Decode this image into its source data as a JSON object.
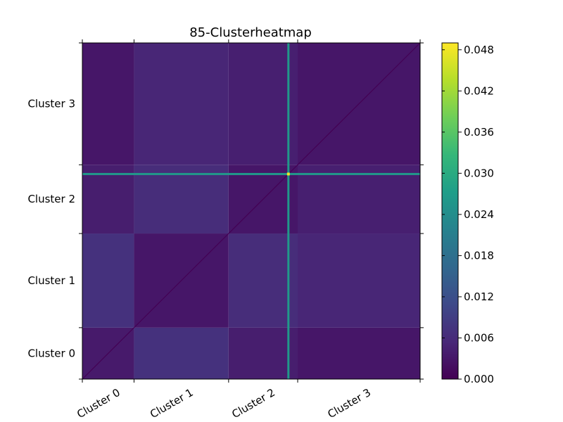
{
  "chart_data": {
    "type": "heatmap",
    "title": "85-Clusterheatmap",
    "x_tick_labels": [
      "Cluster 0",
      "Cluster 1",
      "Cluster 2",
      "Cluster 3"
    ],
    "y_tick_labels": [
      "Cluster 0",
      "Cluster 1",
      "Cluster 2",
      "Cluster 3"
    ],
    "clusters": [
      {
        "name": "Cluster 0",
        "start": 0.0,
        "end": 0.153
      },
      {
        "name": "Cluster 1",
        "start": 0.153,
        "end": 0.433
      },
      {
        "name": "Cluster 2",
        "start": 0.433,
        "end": 0.6375
      },
      {
        "name": "Cluster 3",
        "start": 0.6375,
        "end": 1.0
      }
    ],
    "block_values": [
      [
        0.0035,
        0.007,
        0.004,
        0.003
      ],
      [
        0.007,
        0.003,
        0.0062,
        0.0052
      ],
      [
        0.004,
        0.0062,
        0.003,
        0.0042
      ],
      [
        0.003,
        0.0052,
        0.0042,
        0.003
      ]
    ],
    "outlier_line_position": 0.61,
    "outlier_line_value": 0.026,
    "outlier_crossing_value": 0.048,
    "colorbar": {
      "min": 0.0,
      "max": 0.049,
      "ticks": [
        "0.000",
        "0.006",
        "0.012",
        "0.018",
        "0.024",
        "0.030",
        "0.036",
        "0.042",
        "0.048"
      ],
      "colormap": "viridis"
    },
    "viridis_stops": [
      "#440154",
      "#482878",
      "#3e4989",
      "#31688e",
      "#26828e",
      "#1f9e89",
      "#35b779",
      "#6ece58",
      "#b5de2b",
      "#fde725"
    ]
  }
}
